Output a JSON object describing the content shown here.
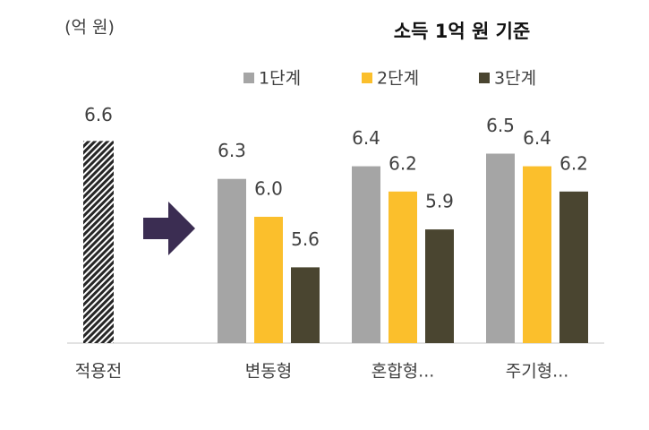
{
  "chart_data": {
    "type": "bar",
    "title": "소득 1억 원 기준",
    "unit": "(억 원)",
    "categories": [
      "적용전",
      "변동형",
      "혼합형...",
      "주기형..."
    ],
    "baseline": {
      "values": [
        6.6,
        null,
        null,
        null
      ]
    },
    "series": [
      {
        "name": "1단계",
        "color": "#a5a5a5",
        "values": [
          null,
          6.3,
          6.4,
          6.5
        ]
      },
      {
        "name": "2단계",
        "color": "#fbbf2c",
        "values": [
          null,
          6.0,
          6.2,
          6.4
        ]
      },
      {
        "name": "3단계",
        "color": "#4a4530",
        "values": [
          null,
          5.6,
          5.9,
          6.2
        ]
      }
    ],
    "value_labels": [
      [
        "",
        "6.3",
        "6.4",
        "6.5"
      ],
      [
        "",
        "6.0",
        "6.2",
        "6.4"
      ],
      [
        "",
        "5.6",
        "5.9",
        "6.2"
      ]
    ],
    "ylim": [
      5,
      7
    ],
    "grid": false,
    "legend": "top"
  }
}
